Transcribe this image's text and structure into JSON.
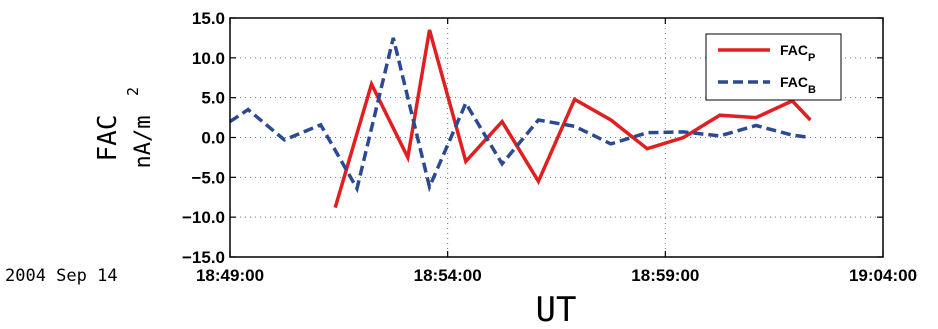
{
  "date_label": "2004 Sep 14",
  "chart_data": {
    "type": "line",
    "xlabel": "UT",
    "ylabel_line1": "FAC",
    "ylabel_line2": "nA/m",
    "ylabel_sup": "2",
    "x_ticks": [
      "18:49:00",
      "18:54:00",
      "18:59:00",
      "19:04:00"
    ],
    "y_ticks": [
      "15.0",
      "10.0",
      "5.0",
      "0.0",
      "-5.0",
      "-10.0",
      "-15.0"
    ],
    "xlim": [
      "18:49:00",
      "19:04:00"
    ],
    "ylim": [
      -15,
      15
    ],
    "grid": true,
    "legend_position": "top-right",
    "series": [
      {
        "name": "FAC",
        "sub": "P",
        "color": "#e02020",
        "dash": "solid",
        "points": [
          [
            "18:51:25",
            -8.8
          ],
          [
            "18:52:15",
            6.7
          ],
          [
            "18:53:05",
            -2.5
          ],
          [
            "18:53:35",
            13.5
          ],
          [
            "18:54:25",
            -3.0
          ],
          [
            "18:55:15",
            2.0
          ],
          [
            "18:56:05",
            -5.5
          ],
          [
            "18:56:55",
            4.8
          ],
          [
            "18:57:45",
            2.2
          ],
          [
            "18:58:35",
            -1.4
          ],
          [
            "18:59:25",
            0.0
          ],
          [
            "19:00:15",
            2.8
          ],
          [
            "19:01:05",
            2.5
          ],
          [
            "19:01:55",
            4.6
          ],
          [
            "19:02:20",
            2.2
          ]
        ]
      },
      {
        "name": "FAC",
        "sub": "B",
        "color": "#2b4a91",
        "dash": "dashed",
        "points": [
          [
            "18:49:00",
            2.0
          ],
          [
            "18:49:25",
            3.5
          ],
          [
            "18:50:15",
            -0.3
          ],
          [
            "18:51:05",
            1.6
          ],
          [
            "18:51:55",
            -6.4
          ],
          [
            "18:52:45",
            12.5
          ],
          [
            "18:53:35",
            -6.2
          ],
          [
            "18:54:25",
            4.3
          ],
          [
            "18:55:15",
            -3.3
          ],
          [
            "18:56:05",
            2.2
          ],
          [
            "18:56:55",
            1.4
          ],
          [
            "18:57:45",
            -0.8
          ],
          [
            "18:58:35",
            0.6
          ],
          [
            "18:59:25",
            0.7
          ],
          [
            "19:00:15",
            0.2
          ],
          [
            "19:01:05",
            1.5
          ],
          [
            "19:01:55",
            0.3
          ],
          [
            "19:02:20",
            0.0
          ]
        ]
      }
    ]
  }
}
